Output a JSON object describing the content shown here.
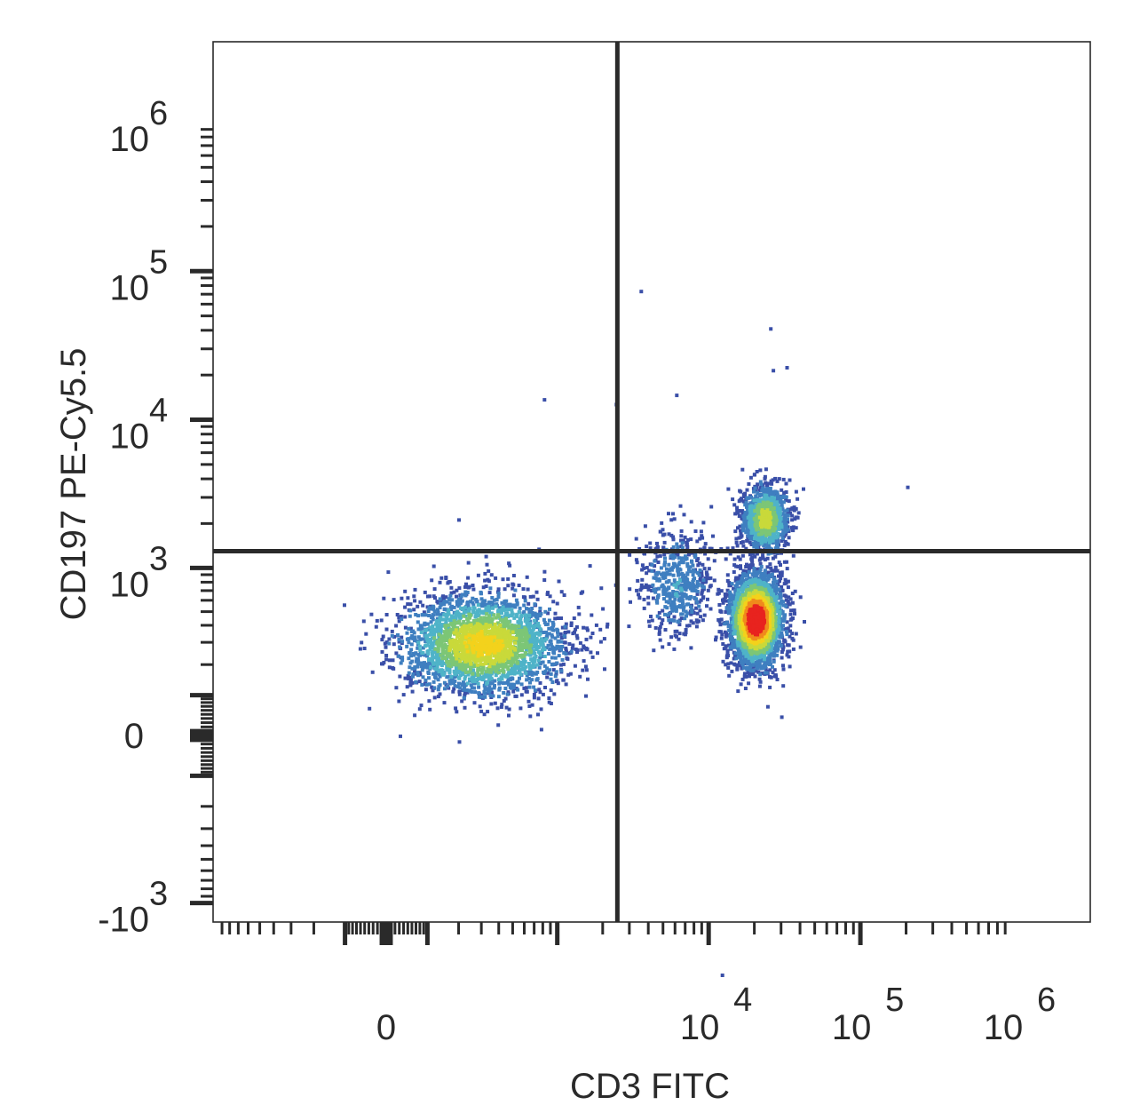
{
  "chart_data": {
    "type": "scatter",
    "subtype": "flow-cytometry-density-dot-plot",
    "xlabel": "CD3 FITC",
    "ylabel": "CD197 PE-Cy5.5",
    "x_scale": "biexponential",
    "y_scale": "biexponential",
    "x_ticks": [
      {
        "value": 0,
        "base": "0",
        "exp": ""
      },
      {
        "value": 10000,
        "base": "10",
        "exp": "4"
      },
      {
        "value": 100000,
        "base": "10",
        "exp": "5"
      },
      {
        "value": 1000000,
        "base": "10",
        "exp": "6"
      }
    ],
    "y_ticks": [
      {
        "value": -1000,
        "base": "-10",
        "exp": "3"
      },
      {
        "value": 0,
        "base": "0",
        "exp": ""
      },
      {
        "value": 1000,
        "base": "10",
        "exp": "3"
      },
      {
        "value": 10000,
        "base": "10",
        "exp": "4"
      },
      {
        "value": 100000,
        "base": "10",
        "exp": "5"
      },
      {
        "value": 1000000,
        "base": "10",
        "exp": "6"
      }
    ],
    "quadrant_gate": {
      "x": 2500,
      "y": 1300
    },
    "density_colors": [
      "#3a4fa8",
      "#3f7fc0",
      "#4fb3c8",
      "#7cc676",
      "#c9d93a",
      "#f3d21c",
      "#f08a1c",
      "#e8231f"
    ],
    "populations": [
      {
        "name": "",
        "x_center": 300,
        "y_center": 300,
        "x_spread": 700,
        "y_spread": 350,
        "count": 2600,
        "peak_density": 0.62
      },
      {
        "name": "",
        "x_center": 20000,
        "y_center": 450,
        "x_spread": 9000,
        "y_spread": 420,
        "count": 2800,
        "peak_density": 1.0
      },
      {
        "name": "",
        "x_center": 23000,
        "y_center": 2200,
        "x_spread": 9000,
        "y_spread": 1400,
        "count": 1100,
        "peak_density": 0.5
      },
      {
        "name": "",
        "x_center": 6000,
        "y_center": 800,
        "x_spread": 4000,
        "y_spread": 900,
        "count": 500,
        "peak_density": 0.2
      }
    ],
    "outliers": [
      {
        "x": 3500,
        "y": 75000
      },
      {
        "x": 6000,
        "y": 15000
      },
      {
        "x": 25000,
        "y": 42000
      },
      {
        "x": 26000,
        "y": 22000
      },
      {
        "x": 32000,
        "y": 23000
      },
      {
        "x": 200000,
        "y": 3600
      },
      {
        "x": 12000,
        "y": -3000
      },
      {
        "x": 800,
        "y": 14000
      },
      {
        "x": 2400,
        "y": 13000
      }
    ],
    "grid": false
  }
}
